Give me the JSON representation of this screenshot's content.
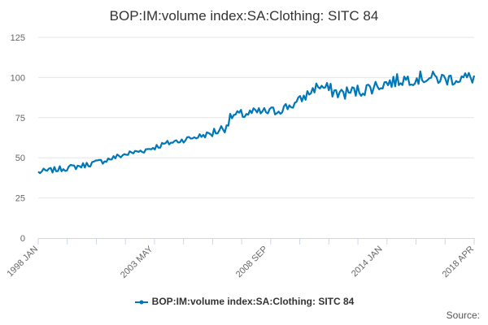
{
  "chart_data": {
    "type": "line",
    "title": "BOP:IM:volume index:SA:Clothing: SITC 84",
    "xlabel": "",
    "ylabel": "",
    "ylim": [
      0,
      125
    ],
    "yticks": [
      0,
      25,
      50,
      75,
      100,
      125
    ],
    "grid": true,
    "legend_position": "bottom-center",
    "x_ticks": [
      "1998 JAN",
      "2003 MAY",
      "2008 SEP",
      "2014 JAN",
      "2018 APR"
    ],
    "series": [
      {
        "name": "BOP:IM:volume index:SA:Clothing: SITC 84",
        "color": "#0077b6",
        "anchors": [
          {
            "x": "1998 JAN",
            "value": 41
          },
          {
            "x": "1999 JAN",
            "value": 43
          },
          {
            "x": "2000 JAN",
            "value": 45
          },
          {
            "x": "2001 JAN",
            "value": 48
          },
          {
            "x": "2002 JAN",
            "value": 52
          },
          {
            "x": "2003 JAN",
            "value": 55
          },
          {
            "x": "2004 JAN",
            "value": 59
          },
          {
            "x": "2005 JAN",
            "value": 62
          },
          {
            "x": "2006 JAN",
            "value": 65
          },
          {
            "x": "2006 SEP",
            "value": 69
          },
          {
            "x": "2007 JAN",
            "value": 76
          },
          {
            "x": "2008 JAN",
            "value": 78
          },
          {
            "x": "2009 JAN",
            "value": 79
          },
          {
            "x": "2010 JAN",
            "value": 84
          },
          {
            "x": "2011 JAN",
            "value": 95
          },
          {
            "x": "2012 JAN",
            "value": 90
          },
          {
            "x": "2013 JAN",
            "value": 92
          },
          {
            "x": "2014 JAN",
            "value": 96
          },
          {
            "x": "2015 JAN",
            "value": 99
          },
          {
            "x": "2016 JAN",
            "value": 100
          },
          {
            "x": "2017 JAN",
            "value": 99
          },
          {
            "x": "2018 APR",
            "value": 100
          }
        ]
      }
    ]
  },
  "credits": "Source:"
}
